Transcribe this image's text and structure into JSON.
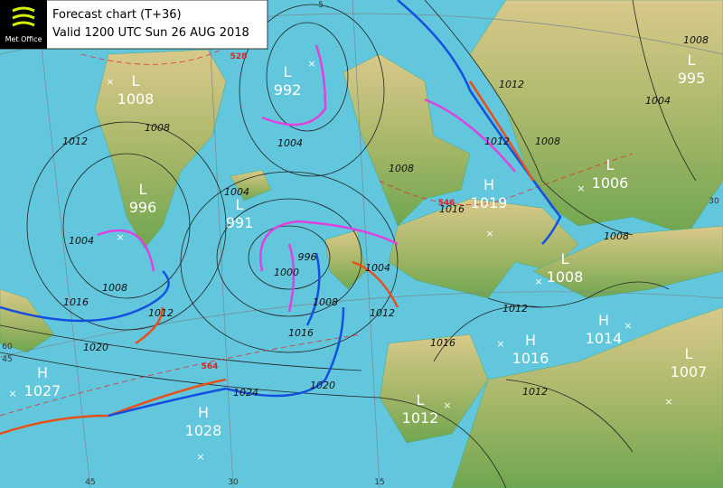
{
  "header": {
    "logo": "Met Office",
    "title": "Forecast chart (T+36)",
    "valid": "Valid 1200 UTC Sun 26 AUG 2018"
  },
  "centres": [
    {
      "type": "L",
      "pressure": 1008
    },
    {
      "type": "L",
      "pressure": 992
    },
    {
      "type": "L",
      "pressure": 995
    },
    {
      "type": "L",
      "pressure": 996
    },
    {
      "type": "L",
      "pressure": 991
    },
    {
      "type": "H",
      "pressure": 1019
    },
    {
      "type": "L",
      "pressure": 1006
    },
    {
      "type": "L",
      "pressure": 1008
    },
    {
      "type": "H",
      "pressure": 1014
    },
    {
      "type": "H",
      "pressure": 1016
    },
    {
      "type": "L",
      "pressure": 1007
    },
    {
      "type": "L",
      "pressure": 1012
    },
    {
      "type": "H",
      "pressure": 1027
    },
    {
      "type": "H",
      "pressure": 1028
    }
  ],
  "isobar_labels": [
    1008,
    1012,
    1004,
    1008,
    1016,
    1012,
    1020,
    1024,
    1020,
    1016,
    1008,
    1000,
    996,
    1004,
    1004,
    1008,
    1012,
    1012,
    1008,
    1008,
    1004,
    1008,
    1016,
    1004,
    1012,
    1012,
    1016,
    1012
  ],
  "thickness_labels": [
    528,
    546,
    564
  ],
  "grid_labels": [
    5,
    60,
    45,
    45,
    30,
    15,
    30
  ]
}
